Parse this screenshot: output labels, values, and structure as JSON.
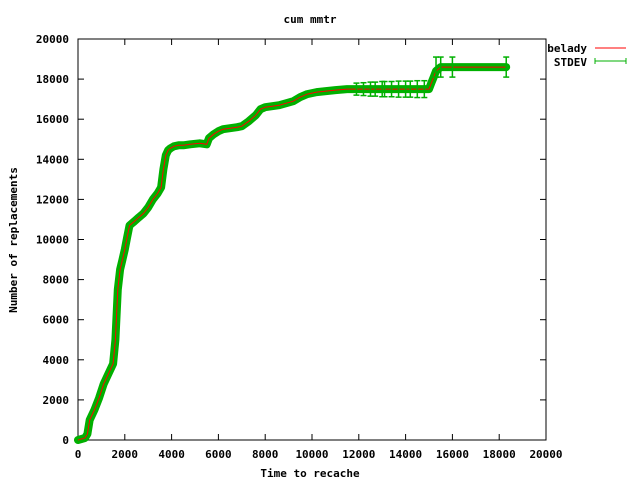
{
  "chart_data": {
    "type": "line",
    "title": "cum mmtr",
    "xlabel": "Time to recache",
    "ylabel": "Number of replacements",
    "xlim": [
      0,
      20000
    ],
    "ylim": [
      0,
      20000
    ],
    "xticks": [
      0,
      2000,
      4000,
      6000,
      8000,
      10000,
      12000,
      14000,
      16000,
      18000,
      20000
    ],
    "yticks": [
      0,
      2000,
      4000,
      6000,
      8000,
      10000,
      12000,
      14000,
      16000,
      18000,
      20000
    ],
    "grid": false,
    "legend_position": "top-right",
    "series": [
      {
        "name": "belady",
        "color": "#ff0000",
        "x": [
          0,
          150,
          300,
          400,
          500,
          700,
          900,
          1100,
          1300,
          1500,
          1600,
          1700,
          1800,
          1900,
          2000,
          2100,
          2200,
          2300,
          2400,
          2600,
          2800,
          3000,
          3200,
          3400,
          3550,
          3650,
          3750,
          3850,
          3950,
          4100,
          4300,
          4500,
          4800,
          5200,
          5500,
          5600,
          5800,
          6000,
          6200,
          6500,
          6800,
          7000,
          7300,
          7600,
          7800,
          8000,
          8300,
          8600,
          8900,
          9200,
          9500,
          9800,
          10200,
          10600,
          11000,
          11500,
          12000,
          12500,
          13000,
          13500,
          14000,
          14500,
          15000,
          15100,
          15200,
          15300,
          15500,
          16000,
          17000,
          18300
        ],
        "y": [
          0,
          50,
          100,
          300,
          1000,
          1500,
          2100,
          2800,
          3300,
          3800,
          5000,
          7500,
          8500,
          9000,
          9500,
          10100,
          10700,
          10800,
          10900,
          11100,
          11300,
          11600,
          12000,
          12300,
          12600,
          13500,
          14200,
          14450,
          14550,
          14650,
          14700,
          14700,
          14750,
          14800,
          14750,
          15050,
          15250,
          15400,
          15500,
          15550,
          15600,
          15650,
          15900,
          16200,
          16500,
          16600,
          16650,
          16700,
          16800,
          16900,
          17100,
          17250,
          17350,
          17400,
          17450,
          17500,
          17500,
          17500,
          17500,
          17500,
          17500,
          17500,
          17500,
          17800,
          18100,
          18400,
          18600,
          18600,
          18600,
          18600
        ]
      },
      {
        "name": "STDEV",
        "color": "#00b000",
        "errorbars": [
          {
            "x": 11900,
            "y": 17500,
            "err": 300
          },
          {
            "x": 12200,
            "y": 17500,
            "err": 320
          },
          {
            "x": 12500,
            "y": 17500,
            "err": 350
          },
          {
            "x": 12700,
            "y": 17500,
            "err": 350
          },
          {
            "x": 13000,
            "y": 17500,
            "err": 380
          },
          {
            "x": 13100,
            "y": 17500,
            "err": 380
          },
          {
            "x": 13400,
            "y": 17500,
            "err": 380
          },
          {
            "x": 13700,
            "y": 17500,
            "err": 400
          },
          {
            "x": 14000,
            "y": 17500,
            "err": 400
          },
          {
            "x": 14200,
            "y": 17500,
            "err": 400
          },
          {
            "x": 14500,
            "y": 17500,
            "err": 420
          },
          {
            "x": 14800,
            "y": 17500,
            "err": 420
          },
          {
            "x": 15300,
            "y": 18600,
            "err": 500
          },
          {
            "x": 15500,
            "y": 18600,
            "err": 500
          },
          {
            "x": 16000,
            "y": 18600,
            "err": 500
          },
          {
            "x": 18300,
            "y": 18600,
            "err": 500
          }
        ]
      }
    ]
  }
}
